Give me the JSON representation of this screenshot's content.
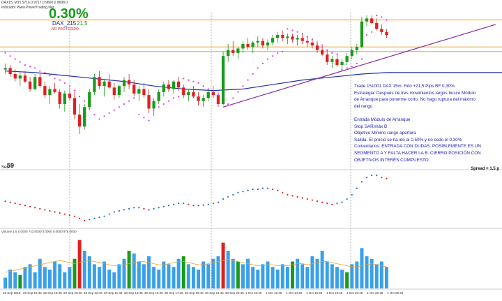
{
  "header": {
    "line1": "DAX15, M15  9716.0  9717.0  9660.0  9698.0",
    "line2": "Indicador  Www.PowerTrading.Net",
    "percent": "0.30%",
    "account": "DAX_215",
    "pips": "21.5",
    "status": "NO PROTEGIDO"
  },
  "notes": [
    "Trade 151001 DAX 15m. Rdo +21,5 Pips  BF 0,30%",
    "Estrategia: Después de tres movimientos largos busco Módulo",
    "de Arranque para ponerme corto. No hago ruptura del máximo",
    "del rango",
    "",
    "Entrada Módulo de Arranque",
    "Stop SAR/máx B",
    "Objetivo Mínimo rango apertura",
    "Salida. El precio se ha ido al 0.50% y no cedo el 0,30%",
    "Comentarios: ENTRADA CON DUDAS. POSIBLEMENTE ES UN",
    "SEGMENTO A Y FALTA HACER LA B. CIERRO POSICIÓN CON",
    "OBJETIVOS INTERÉS COMPUESTO."
  ],
  "spread_label": "Spread = 1.5 p",
  "sec_label": "Sec",
  "sec_value": "59",
  "volume_label": "Volume 1.5  0.0000  743.0000  0.0000  0.0000  976.0000",
  "x_ticks": [
    "29 Sep 2015",
    "29 Sep 16:45",
    "29 Sep 18:45",
    "29 Sep 20:45",
    "29 Sep 22:45",
    "30 Sep 11:45",
    "30 Sep 13:45",
    "30 Sep 15:45",
    "30 Sep 17:45",
    "30 Sep 19:45",
    "30 Sep 21:45",
    "30 Sep 23:45",
    "1 Oct 10:45",
    "1 Oct 12:45",
    "1 Oct 14:45",
    "1 Oct 16:45",
    "1 Oct 18:45",
    "1 Oct 20:45",
    "1 Oct 22:45",
    "1 Oct 00:45"
  ],
  "colors": {
    "bull": "#1a9a1a",
    "bear": "#e02020",
    "sar": "#e040e0",
    "ma": "#1e2fb0",
    "trend": "#8a2aa0",
    "levels": "#f0a020",
    "osc_up": "#1e6fd0",
    "osc_down": "#e02020",
    "vol_bar": "#3aa0e8",
    "vol_line": "#f0a020"
  },
  "chart_data": {
    "type": "candlestick",
    "title": "",
    "xlabel": "",
    "ylabel": "",
    "ylim": [
      0,
      100
    ],
    "levels": [
      96,
      78,
      75
    ],
    "trendline": {
      "from": [
        44,
        38
      ],
      "to": [
        99,
        93
      ]
    },
    "candles": [
      [
        63,
        67,
        60,
        64
      ],
      [
        64,
        66,
        58,
        60
      ],
      [
        60,
        63,
        55,
        57
      ],
      [
        57,
        61,
        52,
        59
      ],
      [
        59,
        62,
        54,
        55
      ],
      [
        55,
        58,
        48,
        50
      ],
      [
        50,
        60,
        49,
        58
      ],
      [
        58,
        61,
        51,
        52
      ],
      [
        52,
        55,
        44,
        46
      ],
      [
        46,
        52,
        40,
        50
      ],
      [
        50,
        54,
        47,
        48
      ],
      [
        48,
        50,
        37,
        40
      ],
      [
        40,
        49,
        35,
        47
      ],
      [
        47,
        51,
        42,
        44
      ],
      [
        44,
        48,
        30,
        33
      ],
      [
        33,
        40,
        20,
        25
      ],
      [
        25,
        40,
        23,
        38
      ],
      [
        38,
        50,
        36,
        48
      ],
      [
        48,
        60,
        46,
        58
      ],
      [
        58,
        62,
        50,
        52
      ],
      [
        52,
        56,
        45,
        55
      ],
      [
        55,
        60,
        50,
        51
      ],
      [
        51,
        54,
        43,
        46
      ],
      [
        46,
        53,
        44,
        52
      ],
      [
        52,
        58,
        48,
        56
      ],
      [
        56,
        60,
        50,
        53
      ],
      [
        53,
        56,
        45,
        47
      ],
      [
        47,
        52,
        42,
        50
      ],
      [
        50,
        54,
        44,
        46
      ],
      [
        46,
        50,
        34,
        37
      ],
      [
        37,
        44,
        32,
        42
      ],
      [
        42,
        50,
        40,
        48
      ],
      [
        48,
        55,
        45,
        53
      ],
      [
        53,
        56,
        48,
        50
      ],
      [
        50,
        56,
        47,
        55
      ],
      [
        55,
        58,
        49,
        51
      ],
      [
        51,
        53,
        44,
        46
      ],
      [
        46,
        50,
        42,
        48
      ],
      [
        48,
        52,
        44,
        45
      ],
      [
        45,
        48,
        39,
        42
      ],
      [
        42,
        46,
        38,
        44
      ],
      [
        44,
        50,
        42,
        48
      ],
      [
        48,
        52,
        44,
        46
      ],
      [
        46,
        48,
        38,
        40
      ],
      [
        40,
        75,
        39,
        72
      ],
      [
        72,
        80,
        68,
        76
      ],
      [
        76,
        82,
        72,
        74
      ],
      [
        74,
        78,
        70,
        77
      ],
      [
        77,
        82,
        74,
        80
      ],
      [
        80,
        84,
        76,
        78
      ],
      [
        78,
        82,
        74,
        81
      ],
      [
        81,
        85,
        78,
        82
      ],
      [
        82,
        84,
        77,
        79
      ],
      [
        79,
        83,
        76,
        81
      ],
      [
        81,
        86,
        79,
        84
      ],
      [
        84,
        88,
        81,
        86
      ],
      [
        86,
        89,
        82,
        84
      ],
      [
        84,
        87,
        80,
        85
      ],
      [
        85,
        87,
        81,
        83
      ],
      [
        83,
        86,
        79,
        84
      ],
      [
        84,
        87,
        80,
        82
      ],
      [
        82,
        85,
        78,
        81
      ],
      [
        81,
        84,
        77,
        79
      ],
      [
        79,
        82,
        74,
        76
      ],
      [
        76,
        80,
        72,
        73
      ],
      [
        73,
        76,
        66,
        68
      ],
      [
        68,
        72,
        64,
        70
      ],
      [
        70,
        74,
        65,
        66
      ],
      [
        66,
        70,
        62,
        68
      ],
      [
        68,
        74,
        66,
        72
      ],
      [
        72,
        78,
        70,
        76
      ],
      [
        76,
        80,
        73,
        78
      ],
      [
        78,
        98,
        77,
        95
      ],
      [
        95,
        99,
        92,
        97
      ],
      [
        97,
        99,
        93,
        94
      ],
      [
        94,
        97,
        89,
        90
      ],
      [
        90,
        93,
        86,
        88
      ],
      [
        88,
        90,
        84,
        86
      ]
    ],
    "sar": [
      [
        0,
        74
      ],
      [
        1,
        72
      ],
      [
        2,
        70
      ],
      [
        3,
        68
      ],
      [
        4,
        66
      ],
      [
        5,
        65
      ],
      [
        6,
        64
      ],
      [
        7,
        62
      ],
      [
        8,
        61
      ],
      [
        9,
        59
      ],
      [
        10,
        57
      ],
      [
        11,
        56
      ],
      [
        12,
        54
      ],
      [
        13,
        52
      ],
      [
        14,
        49
      ],
      [
        15,
        45
      ],
      [
        16,
        42
      ],
      [
        17,
        37
      ],
      [
        18,
        33
      ],
      [
        19,
        30
      ],
      [
        20,
        32
      ],
      [
        21,
        34
      ],
      [
        22,
        36
      ],
      [
        23,
        38
      ],
      [
        24,
        40
      ],
      [
        25,
        42
      ],
      [
        26,
        44
      ],
      [
        27,
        33
      ],
      [
        28,
        31
      ],
      [
        29,
        29
      ],
      [
        30,
        36
      ],
      [
        31,
        38
      ],
      [
        32,
        40
      ],
      [
        33,
        42
      ],
      [
        34,
        44
      ],
      [
        35,
        45
      ],
      [
        36,
        57
      ],
      [
        37,
        56
      ],
      [
        38,
        55
      ],
      [
        39,
        54
      ],
      [
        40,
        52
      ],
      [
        41,
        50
      ],
      [
        42,
        48
      ],
      [
        43,
        46
      ],
      [
        45,
        40
      ],
      [
        46,
        44
      ],
      [
        47,
        48
      ],
      [
        48,
        52
      ],
      [
        49,
        56
      ],
      [
        50,
        60
      ],
      [
        51,
        64
      ],
      [
        52,
        67
      ],
      [
        53,
        70
      ],
      [
        54,
        72
      ],
      [
        55,
        74
      ],
      [
        56,
        75
      ],
      [
        57,
        90
      ],
      [
        58,
        89
      ],
      [
        59,
        88
      ],
      [
        60,
        87
      ],
      [
        61,
        85
      ],
      [
        62,
        83
      ],
      [
        63,
        80
      ],
      [
        64,
        78
      ],
      [
        65,
        76
      ],
      [
        66,
        74
      ],
      [
        67,
        73
      ],
      [
        68,
        63
      ],
      [
        69,
        64
      ],
      [
        70,
        65
      ],
      [
        71,
        67
      ],
      [
        72,
        70
      ],
      [
        73,
        86
      ],
      [
        74,
        88
      ],
      [
        75,
        99
      ],
      [
        76,
        98
      ],
      [
        77,
        96
      ]
    ],
    "ma": [
      [
        0,
        62
      ],
      [
        6,
        61
      ],
      [
        12,
        59
      ],
      [
        18,
        57
      ],
      [
        24,
        55
      ],
      [
        30,
        52
      ],
      [
        36,
        50
      ],
      [
        42,
        49
      ],
      [
        48,
        50
      ],
      [
        54,
        53
      ],
      [
        60,
        56
      ],
      [
        66,
        58
      ],
      [
        72,
        60
      ],
      [
        77,
        61
      ]
    ],
    "oscillator": [
      -0.1,
      -0.15,
      -0.2,
      -0.25,
      -0.3,
      -0.35,
      -0.4,
      -0.45,
      -0.5,
      -0.55,
      -0.6,
      -0.65,
      -0.7,
      -0.75,
      -0.8,
      -0.9,
      -1.0,
      -0.95,
      -0.9,
      -0.85,
      -0.8,
      -0.7,
      -0.6,
      -0.55,
      -0.5,
      -0.45,
      -0.4,
      -0.4,
      -0.45,
      -0.5,
      -0.45,
      -0.4,
      -0.35,
      -0.3,
      -0.25,
      -0.2,
      -0.2,
      -0.25,
      -0.3,
      -0.3,
      -0.28,
      -0.25,
      -0.2,
      -0.15,
      0.0,
      0.1,
      0.2,
      0.3,
      0.35,
      0.4,
      0.45,
      0.45,
      0.5,
      0.5,
      0.45,
      0.4,
      0.3,
      0.2,
      0.15,
      0.1,
      0.05,
      0.0,
      -0.05,
      -0.1,
      -0.15,
      -0.2,
      -0.25,
      -0.2,
      -0.15,
      0.0,
      0.2,
      0.5,
      0.8,
      1.0,
      1.1,
      1.1,
      1.0,
      0.95
    ],
    "volume": [
      20,
      35,
      30,
      25,
      40,
      45,
      30,
      55,
      40,
      35,
      50,
      45,
      30,
      40,
      55,
      90,
      70,
      60,
      45,
      40,
      50,
      35,
      30,
      45,
      55,
      70,
      65,
      50,
      45,
      60,
      40,
      35,
      50,
      45,
      40,
      55,
      60,
      45,
      40,
      35,
      50,
      45,
      55,
      60,
      85,
      70,
      55,
      50,
      45,
      55,
      40,
      35,
      45,
      50,
      40,
      35,
      45,
      40,
      50,
      55,
      45,
      40,
      60,
      55,
      70,
      50,
      45,
      40,
      35,
      30,
      45,
      50,
      75,
      60,
      55,
      45,
      50,
      40
    ],
    "volume_avg": [
      30,
      32,
      34,
      36,
      38,
      40,
      42,
      44,
      46,
      48,
      50,
      52,
      50,
      48,
      46,
      48,
      50,
      52,
      50,
      48,
      46,
      44,
      42,
      42,
      44,
      46,
      48,
      50,
      50,
      48,
      46,
      44,
      44,
      46,
      48,
      50,
      50,
      48,
      46,
      44,
      44,
      46,
      48,
      50,
      52,
      54,
      52,
      50,
      48,
      46,
      44,
      42,
      42,
      44,
      44,
      42,
      42,
      42,
      44,
      46,
      46,
      44,
      46,
      48,
      50,
      50,
      48,
      46,
      44,
      42,
      40,
      40,
      42,
      44,
      46,
      44,
      42,
      40
    ]
  }
}
